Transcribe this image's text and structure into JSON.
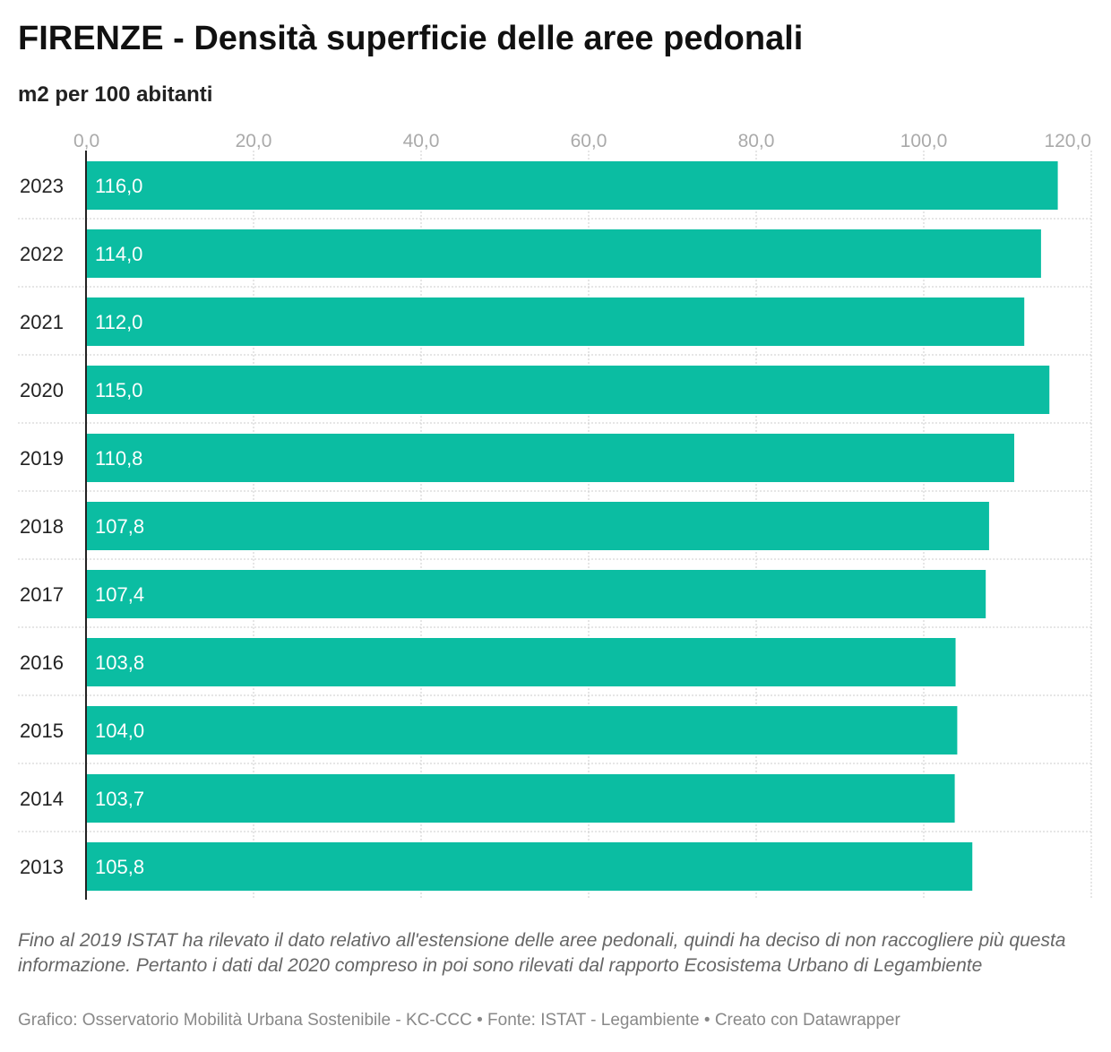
{
  "header": {
    "title": "FIRENZE - Densità superficie delle aree pedonali",
    "subtitle": "m2 per 100 abitanti"
  },
  "chart_data": {
    "type": "bar",
    "orientation": "horizontal",
    "title": "FIRENZE - Densità superficie delle aree pedonali",
    "subtitle": "m2 per 100 abitanti",
    "categories": [
      "2023",
      "2022",
      "2021",
      "2020",
      "2019",
      "2018",
      "2017",
      "2016",
      "2015",
      "2014",
      "2013"
    ],
    "values": [
      116.0,
      114.0,
      112.0,
      115.0,
      110.8,
      107.8,
      107.4,
      103.8,
      104.0,
      103.7,
      105.8
    ],
    "value_labels": [
      "116,0",
      "114,0",
      "112,0",
      "115,0",
      "110,8",
      "107,8",
      "107,4",
      "103,8",
      "104,0",
      "103,7",
      "105,8"
    ],
    "xlim": [
      0,
      120
    ],
    "ticks": [
      0,
      20,
      40,
      60,
      80,
      100,
      120
    ],
    "tick_labels": [
      "0,0",
      "20,0",
      "40,0",
      "60,0",
      "80,0",
      "100,0",
      "120,0"
    ],
    "xlabel": "",
    "ylabel": "",
    "grid": true,
    "bar_color": "#0bbda2",
    "label_color": "#ffffff",
    "grid_color": "#cccccc",
    "tick_color": "#aaaaaa"
  },
  "notes": "Fino al 2019 ISTAT ha rilevato il dato relativo all'estensione delle aree pedonali, quindi ha deciso di non raccogliere più questa informazione. Pertanto i dati dal 2020 compreso in poi sono rilevati dal rapporto Ecosistema Urbano di Legambiente",
  "footer": "Grafico: Osservatorio Mobilità Urbana Sostenibile - KC-CCC • Fonte: ISTAT - Legambiente • Creato con Datawrapper"
}
